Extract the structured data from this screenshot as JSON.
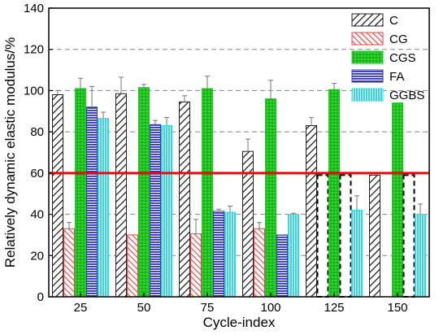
{
  "chart_data": {
    "type": "bar",
    "xlabel": "Cycle-index",
    "ylabel": "Relatively dynamic elastic modulus/%",
    "ylim": [
      0,
      140
    ],
    "yticks": [
      0,
      20,
      40,
      60,
      80,
      100,
      120,
      140
    ],
    "grid": "horizontal dashed",
    "legend_position": "top-right",
    "categories": [
      "25",
      "50",
      "75",
      "100",
      "125",
      "150"
    ],
    "series": [
      {
        "name": "C",
        "color": "#000000",
        "pattern": "diagonal-hatch",
        "values": [
          98,
          98.5,
          94.5,
          70.5,
          83,
          59
        ],
        "errors": [
          2,
          8,
          3,
          6,
          4,
          0
        ]
      },
      {
        "name": "CG",
        "color": "#ff3b3b",
        "pattern": "red-diagonal-hatch",
        "values": [
          33,
          30,
          30.5,
          33,
          59,
          0
        ],
        "errors": [
          3,
          0,
          7,
          3,
          0,
          0
        ],
        "failed": [
          false,
          false,
          false,
          false,
          true,
          false
        ]
      },
      {
        "name": "CGS",
        "color": "#22cc22",
        "pattern": "green-dotted",
        "values": [
          101,
          101.5,
          101,
          96,
          100.5,
          94
        ],
        "errors": [
          5,
          1.5,
          6,
          9,
          3,
          0
        ]
      },
      {
        "name": "FA",
        "color": "#3333cc",
        "pattern": "blue-horizontal-lines",
        "values": [
          92,
          83.5,
          41.5,
          30,
          59,
          59
        ],
        "errors": [
          10,
          2,
          1,
          0,
          0,
          0
        ],
        "failed": [
          false,
          false,
          false,
          false,
          true,
          true
        ]
      },
      {
        "name": "GGBS",
        "color": "#22e0ee",
        "pattern": "cyan-vertical-lines",
        "values": [
          86.5,
          83,
          41,
          40,
          42,
          40
        ],
        "errors": [
          3,
          4,
          3,
          0.5,
          7,
          5
        ]
      }
    ],
    "reference_line": {
      "y": 60,
      "color": "#ff0000"
    }
  }
}
